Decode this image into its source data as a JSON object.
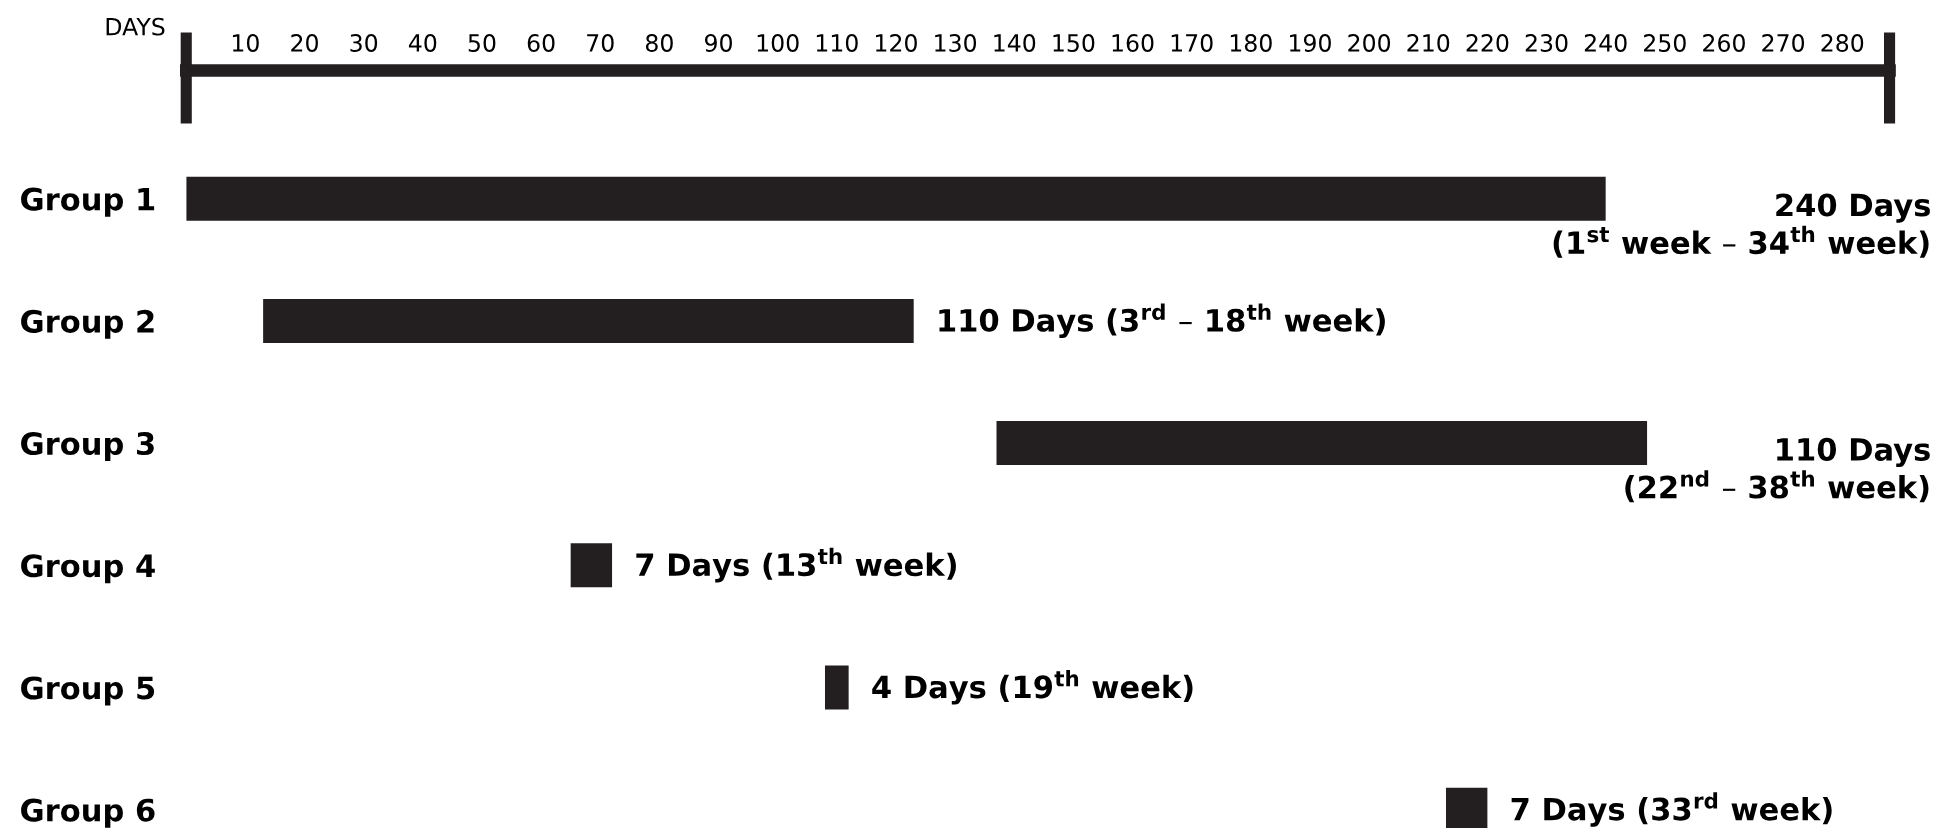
{
  "chart_data": {
    "type": "bar",
    "orientation": "horizontal",
    "xlabel": "DAYS",
    "categories": [
      "Group 1",
      "Group 2",
      "Group 3",
      "Group 4",
      "Group 5",
      "Group 6"
    ],
    "base": [
      0,
      13,
      137,
      65,
      108,
      213
    ],
    "values": [
      240,
      110,
      110,
      7,
      4,
      7
    ],
    "color": "#231f20",
    "value_labels": [
      "240 Days\n(1$^{st}$ week – 34$^{th}$ week)",
      "110 Days (3$^{rd}$ – 18$^{th}$ week)",
      "110 Days\n(22$^{nd}$ – 38$^{th}$ week)",
      "7 Days (13$^{th}$ week)",
      "4 Days (19$^{th}$ week)",
      "7 Days (33$^{rd}$ week)"
    ],
    "xlim": [
      0,
      288
    ],
    "xticks": [
      10,
      20,
      30,
      40,
      50,
      60,
      70,
      80,
      90,
      100,
      110,
      120,
      130,
      140,
      150,
      160,
      170,
      180,
      190,
      200,
      210,
      220,
      230,
      240,
      250,
      260,
      270,
      280
    ],
    "grid": false,
    "legend": false
  }
}
